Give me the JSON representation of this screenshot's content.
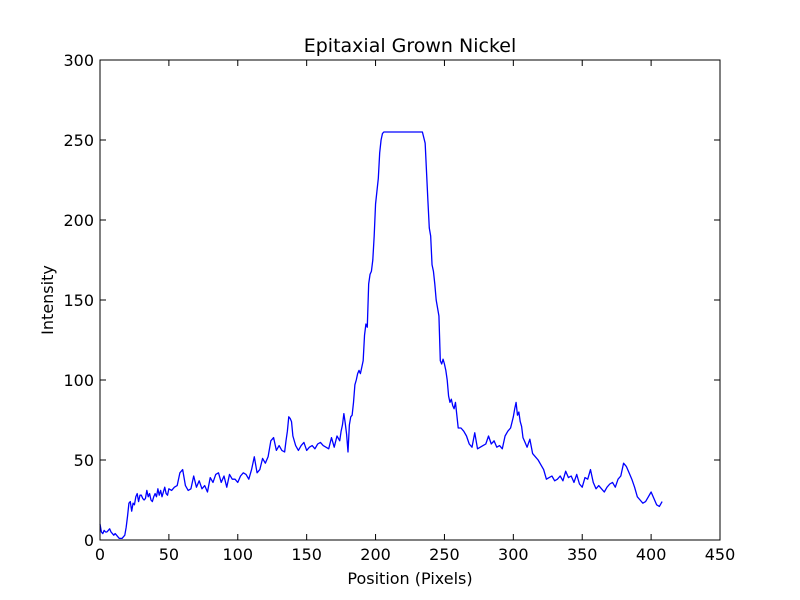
{
  "chart_data": {
    "type": "line",
    "title": "Epitaxial Grown Nickel",
    "xlabel": "Position (Pixels)",
    "ylabel": "Intensity",
    "xlim": [
      0,
      450
    ],
    "ylim": [
      0,
      300
    ],
    "xticks": [
      "0",
      "50",
      "100",
      "150",
      "200",
      "250",
      "300",
      "350",
      "400",
      "450"
    ],
    "yticks": [
      "0",
      "50",
      "100",
      "150",
      "200",
      "250",
      "300"
    ],
    "grid": false,
    "colors": {
      "line": "#0000ff",
      "axes": "#000000",
      "background": "#ffffff"
    },
    "series": [
      {
        "x": [
          0,
          1,
          2,
          3,
          4,
          5,
          6,
          7,
          8,
          9,
          10,
          11,
          12,
          13,
          14,
          15,
          16,
          17,
          18,
          19,
          20,
          21,
          22,
          23,
          24,
          25,
          26,
          27,
          28,
          29,
          30,
          31,
          32,
          33,
          34,
          35,
          36,
          37,
          38,
          39,
          40,
          41,
          42,
          43,
          44,
          45,
          46,
          47,
          48,
          49,
          50,
          52,
          54,
          56,
          58,
          60,
          62,
          64,
          66,
          68,
          70,
          72,
          74,
          76,
          78,
          80,
          82,
          84,
          86,
          88,
          90,
          92,
          94,
          96,
          98,
          100,
          102,
          104,
          106,
          108,
          110,
          112,
          114,
          116,
          118,
          120,
          122,
          124,
          126,
          128,
          130,
          132,
          134,
          135,
          136,
          137,
          138,
          139,
          140,
          142,
          144,
          146,
          148,
          150,
          152,
          154,
          156,
          158,
          160,
          162,
          164,
          166,
          168,
          170,
          172,
          174,
          175,
          176,
          177,
          178,
          179,
          180,
          181,
          182,
          183,
          184,
          185,
          186,
          187,
          188,
          189,
          190,
          191,
          192,
          193,
          194,
          195,
          196,
          197,
          198,
          199,
          200,
          201,
          202,
          203,
          204,
          205,
          206,
          207,
          208,
          209,
          210,
          212,
          215,
          218,
          222,
          226,
          230,
          234,
          236,
          237,
          238,
          239,
          240,
          241,
          242,
          243,
          244,
          245,
          246,
          247,
          248,
          249,
          250,
          251,
          252,
          253,
          254,
          255,
          256,
          257,
          258,
          259,
          260,
          262,
          264,
          266,
          268,
          270,
          272,
          274,
          276,
          278,
          280,
          282,
          284,
          286,
          288,
          290,
          292,
          294,
          296,
          298,
          300,
          301,
          302,
          303,
          304,
          305,
          306,
          307,
          308,
          310,
          312,
          314,
          316,
          318,
          320,
          322,
          324,
          326,
          328,
          330,
          332,
          334,
          336,
          338,
          340,
          342,
          344,
          346,
          348,
          350,
          352,
          354,
          356,
          358,
          360,
          362,
          364,
          366,
          368,
          370,
          372,
          374,
          376,
          378,
          380,
          382,
          384,
          386,
          388,
          390,
          392,
          394,
          396,
          398,
          400,
          402,
          404,
          406,
          408
        ],
        "y": [
          10,
          5,
          4,
          6,
          5,
          5,
          6,
          7,
          5,
          4,
          3,
          4,
          3,
          2,
          1,
          1,
          1,
          2,
          3,
          8,
          15,
          23,
          24,
          18,
          23,
          22,
          27,
          29,
          24,
          28,
          28,
          26,
          25,
          26,
          31,
          27,
          29,
          25,
          24,
          27,
          29,
          27,
          32,
          28,
          31,
          27,
          30,
          33,
          29,
          28,
          32,
          31,
          33,
          34,
          42,
          44,
          34,
          31,
          32,
          40,
          33,
          37,
          32,
          34,
          30,
          39,
          36,
          41,
          42,
          36,
          40,
          33,
          41,
          38,
          38,
          36,
          40,
          42,
          41,
          38,
          44,
          52,
          42,
          44,
          51,
          48,
          52,
          62,
          64,
          56,
          59,
          56,
          55,
          62,
          68,
          77,
          76,
          74,
          65,
          59,
          56,
          59,
          61,
          56,
          58,
          59,
          57,
          60,
          61,
          59,
          58,
          57,
          64,
          58,
          65,
          62,
          68,
          72,
          79,
          73,
          66,
          55,
          72,
          77,
          78,
          86,
          97,
          100,
          104,
          106,
          104,
          108,
          112,
          128,
          135,
          133,
          160,
          166,
          168,
          175,
          190,
          210,
          218,
          226,
          242,
          250,
          254,
          255,
          255,
          255,
          255,
          255,
          255,
          255,
          255,
          255,
          255,
          255,
          255,
          248,
          230,
          212,
          195,
          190,
          172,
          168,
          160,
          150,
          145,
          140,
          112,
          110,
          113,
          110,
          106,
          100,
          90,
          86,
          88,
          84,
          82,
          86,
          78,
          70,
          70,
          68,
          65,
          60,
          58,
          67,
          57,
          58,
          59,
          60,
          65,
          60,
          62,
          58,
          59,
          57,
          65,
          68,
          70,
          77,
          82,
          86,
          78,
          80,
          74,
          71,
          64,
          62,
          58,
          63,
          54,
          52,
          50,
          47,
          44,
          38,
          39,
          40,
          37,
          38,
          40,
          37,
          43,
          39,
          40,
          36,
          41,
          35,
          33,
          39,
          38,
          44,
          36,
          32,
          34,
          32,
          30,
          33,
          35,
          36,
          33,
          38,
          40,
          48,
          46,
          42,
          38,
          33,
          27,
          25,
          23,
          24,
          27,
          30,
          26,
          22,
          21,
          24
        ]
      }
    ]
  }
}
